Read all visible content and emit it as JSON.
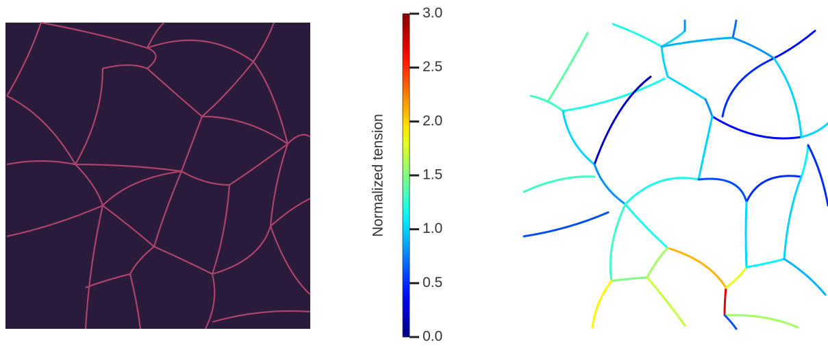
{
  "colorbar": {
    "label": "Normalized tension",
    "lim": [
      0,
      3
    ],
    "ticks": [
      {
        "value": 0,
        "label": "0.0"
      },
      0.5,
      {
        "value": 1,
        "label": "1.0"
      },
      1.5,
      {
        "value": 2,
        "label": "2.0"
      },
      2.5,
      {
        "value": 3,
        "label": "3.0"
      }
    ]
  },
  "network": {
    "tension": [
      1.4,
      1.3,
      1.2,
      1.2,
      1.0,
      0.8,
      1.0,
      1.0,
      0.8,
      0.9,
      0.7,
      0.8,
      0.4,
      0.5,
      0.4,
      1.0,
      1.0,
      1.0,
      0.2,
      0.8,
      1.3,
      1.2,
      0.6,
      0.5,
      1.1,
      1.0,
      0.5,
      0.6,
      1.2,
      2.1,
      2.7,
      1.8,
      1.0,
      1.1,
      1.0,
      0.9,
      1.6,
      1.5,
      1.3,
      1.9,
      1.7,
      1.6,
      0.6
    ]
  }
}
